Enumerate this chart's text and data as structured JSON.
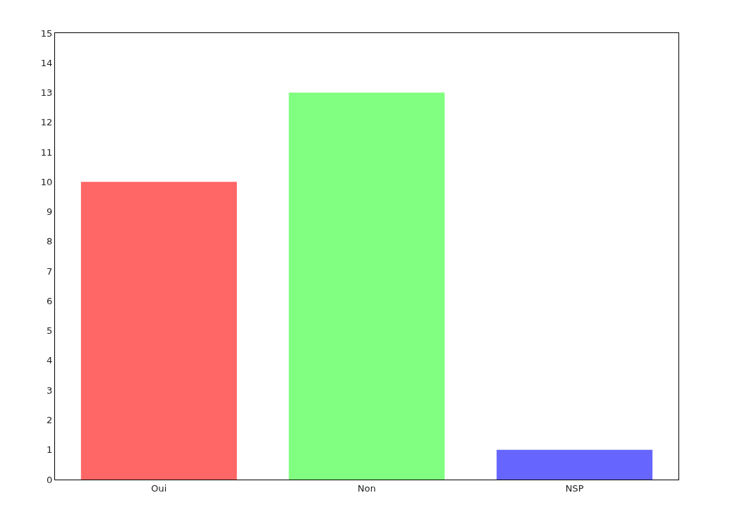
{
  "chart_data": {
    "type": "bar",
    "categories": [
      "Oui",
      "Non",
      "NSP"
    ],
    "values": [
      10,
      13,
      1
    ],
    "colors": [
      "#ff6666",
      "#80ff80",
      "#6666ff"
    ],
    "ylim": [
      0,
      15
    ],
    "yticks": [
      0,
      1,
      2,
      3,
      4,
      5,
      6,
      7,
      8,
      9,
      10,
      11,
      12,
      13,
      14,
      15
    ]
  }
}
